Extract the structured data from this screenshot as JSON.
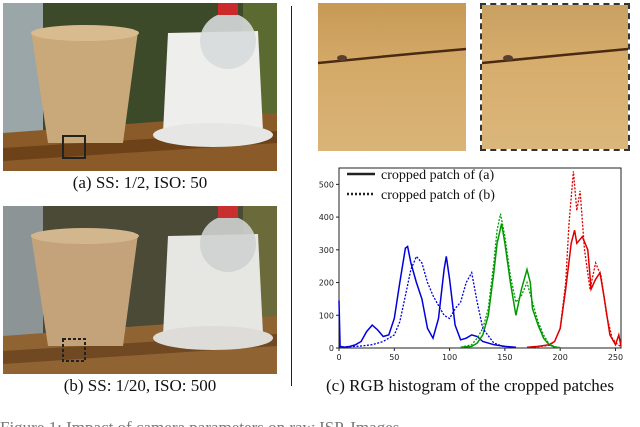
{
  "panels": {
    "a_caption": "(a) SS: 1/2, ISO: 50",
    "b_caption": "(b) SS: 1/20, ISO: 500",
    "c_caption": "(c) RGB histogram of the cropped patches"
  },
  "figure_caption": "Figure 1: Impact of camera parameters on raw ISP. Images",
  "chart_data": {
    "type": "line",
    "xlim": [
      0,
      255
    ],
    "ylim": [
      0,
      550
    ],
    "x_ticks": [
      "0",
      "50",
      "100",
      "150",
      "200",
      "250"
    ],
    "y_ticks": [
      "0",
      "100",
      "200",
      "300",
      "400",
      "500"
    ],
    "legend": [
      "cropped patch of (a)",
      "cropped patch of (b)"
    ],
    "colors": {
      "blue": "#0000dd",
      "green": "#009900",
      "red": "#dd0000"
    },
    "series": [
      {
        "name": "cropped patch of (a)",
        "channel": "blue",
        "style": "solid",
        "x": [
          0,
          1,
          5,
          10,
          15,
          20,
          25,
          30,
          35,
          40,
          45,
          50,
          55,
          60,
          62,
          65,
          70,
          75,
          80,
          85,
          90,
          95,
          97,
          100,
          105,
          110,
          115,
          120,
          125,
          130,
          140,
          150,
          160
        ],
        "y": [
          145,
          5,
          2,
          5,
          10,
          20,
          50,
          70,
          55,
          35,
          40,
          90,
          200,
          305,
          310,
          260,
          200,
          150,
          60,
          30,
          90,
          240,
          280,
          210,
          70,
          25,
          30,
          40,
          35,
          20,
          10,
          5,
          2
        ]
      },
      {
        "name": "cropped patch of (a)",
        "channel": "green",
        "style": "solid",
        "x": [
          110,
          120,
          125,
          130,
          135,
          140,
          143,
          147,
          150,
          155,
          160,
          165,
          170,
          173,
          175,
          180,
          185,
          190,
          195,
          200
        ],
        "y": [
          2,
          5,
          15,
          40,
          100,
          230,
          320,
          380,
          320,
          200,
          100,
          180,
          240,
          200,
          120,
          70,
          30,
          10,
          3,
          1
        ]
      },
      {
        "name": "cropped patch of (a)",
        "channel": "red",
        "style": "solid",
        "x": [
          170,
          180,
          190,
          195,
          200,
          205,
          210,
          213,
          215,
          220,
          225,
          228,
          232,
          236,
          240,
          245,
          250,
          253,
          255
        ],
        "y": [
          2,
          5,
          10,
          20,
          60,
          180,
          320,
          360,
          320,
          340,
          300,
          180,
          210,
          230,
          150,
          40,
          10,
          40,
          5
        ]
      },
      {
        "name": "cropped patch of (b)",
        "channel": "blue",
        "style": "dotted",
        "x": [
          0,
          10,
          20,
          30,
          40,
          50,
          55,
          60,
          65,
          70,
          75,
          80,
          85,
          90,
          95,
          100,
          105,
          110,
          115,
          120,
          125,
          130,
          140,
          150
        ],
        "y": [
          3,
          4,
          6,
          10,
          20,
          40,
          80,
          160,
          240,
          280,
          260,
          200,
          160,
          130,
          100,
          90,
          120,
          140,
          200,
          230,
          140,
          60,
          15,
          3
        ]
      },
      {
        "name": "cropped patch of (b)",
        "channel": "green",
        "style": "dotted",
        "x": [
          110,
          120,
          125,
          130,
          135,
          140,
          143,
          146,
          150,
          155,
          160,
          165,
          170,
          175,
          180,
          185,
          190,
          195,
          200
        ],
        "y": [
          2,
          10,
          30,
          60,
          120,
          260,
          360,
          410,
          340,
          220,
          140,
          160,
          200,
          140,
          80,
          40,
          12,
          4,
          1
        ]
      },
      {
        "name": "cropped patch of (b)",
        "channel": "red",
        "style": "dotted",
        "x": [
          170,
          180,
          190,
          195,
          200,
          205,
          208,
          212,
          215,
          218,
          222,
          227,
          232,
          237,
          242,
          247,
          252,
          255
        ],
        "y": [
          2,
          4,
          8,
          20,
          60,
          200,
          380,
          540,
          420,
          480,
          300,
          180,
          260,
          220,
          100,
          30,
          10,
          5
        ]
      }
    ]
  }
}
